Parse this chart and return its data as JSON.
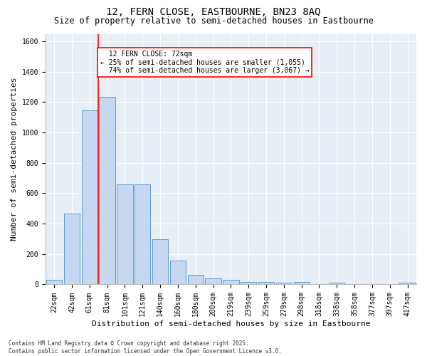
{
  "title_line1": "12, FERN CLOSE, EASTBOURNE, BN23 8AQ",
  "title_line2": "Size of property relative to semi-detached houses in Eastbourne",
  "xlabel": "Distribution of semi-detached houses by size in Eastbourne",
  "ylabel": "Number of semi-detached properties",
  "bar_color": "#c5d8ef",
  "bar_edge_color": "#5b9bd5",
  "background_color": "#e8eef6",
  "grid_color": "#ffffff",
  "categories": [
    "22sqm",
    "42sqm",
    "61sqm",
    "81sqm",
    "101sqm",
    "121sqm",
    "140sqm",
    "160sqm",
    "180sqm",
    "200sqm",
    "219sqm",
    "239sqm",
    "259sqm",
    "279sqm",
    "298sqm",
    "318sqm",
    "338sqm",
    "358sqm",
    "377sqm",
    "397sqm",
    "417sqm"
  ],
  "values": [
    28,
    468,
    1145,
    1237,
    660,
    660,
    297,
    155,
    63,
    38,
    32,
    18,
    15,
    13,
    15,
    2,
    13,
    2,
    2,
    2,
    13
  ],
  "ylim": [
    0,
    1650
  ],
  "yticks": [
    0,
    200,
    400,
    600,
    800,
    1000,
    1200,
    1400,
    1600
  ],
  "property_line_x": 2.5,
  "property_label": "12 FERN CLOSE: 72sqm",
  "pct_smaller": "25%",
  "n_smaller": "1,055",
  "pct_larger": "74%",
  "n_larger": "3,067",
  "footnote": "Contains HM Land Registry data © Crown copyright and database right 2025.\nContains public sector information licensed under the Open Government Licence v3.0.",
  "title_fontsize": 10,
  "subtitle_fontsize": 8.5,
  "label_fontsize": 8,
  "tick_fontsize": 7,
  "annot_fontsize": 7
}
